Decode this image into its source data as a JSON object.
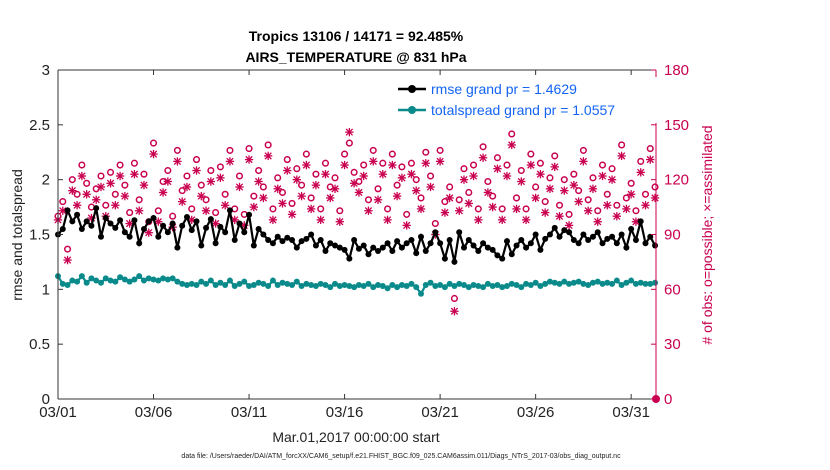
{
  "chart_data": {
    "type": "line",
    "title_line1": "Tropics 13106 / 14171 = 92.485%",
    "title_line2": "AIRS_TEMPERATURE @ 831 hPa",
    "xlabel": "Mar.01,2017 00:00:00 start",
    "ylabel_left": "rmse and totalspread",
    "ylabel_right": "# of obs: o=possible; ×=assimilated",
    "xlim": [
      0,
      31.3
    ],
    "ylim_left": [
      0,
      3
    ],
    "ylim_right": [
      0,
      180
    ],
    "x_ticks": [
      0,
      5,
      10,
      15,
      20,
      25,
      30
    ],
    "x_tick_labels": [
      "03/01",
      "03/06",
      "03/11",
      "03/16",
      "03/21",
      "03/26",
      "03/31"
    ],
    "y_ticks_left": [
      0,
      0.5,
      1,
      1.5,
      2,
      2.5,
      3
    ],
    "y_tick_labels_left": [
      "0",
      "0.5",
      "1",
      "1.5",
      "2",
      "2.5",
      "3"
    ],
    "y_ticks_right": [
      0,
      30,
      60,
      90,
      120,
      150,
      180
    ],
    "y_tick_labels_right": [
      "0",
      "30",
      "60",
      "90",
      "120",
      "150",
      "180"
    ],
    "grid": false,
    "legend_location": "top-right",
    "x": [
      0.0,
      0.25,
      0.5,
      0.75,
      1.0,
      1.25,
      1.5,
      1.75,
      2.0,
      2.25,
      2.5,
      2.75,
      3.0,
      3.25,
      3.5,
      3.75,
      4.0,
      4.25,
      4.5,
      4.75,
      5.0,
      5.25,
      5.5,
      5.75,
      6.0,
      6.25,
      6.5,
      6.75,
      7.0,
      7.25,
      7.5,
      7.75,
      8.0,
      8.25,
      8.5,
      8.75,
      9.0,
      9.25,
      9.5,
      9.75,
      10.0,
      10.25,
      10.5,
      10.75,
      11.0,
      11.25,
      11.5,
      11.75,
      12.0,
      12.25,
      12.5,
      12.75,
      13.0,
      13.25,
      13.5,
      13.75,
      14.0,
      14.25,
      14.5,
      14.75,
      15.0,
      15.25,
      15.5,
      15.75,
      16.0,
      16.25,
      16.5,
      16.75,
      17.0,
      17.25,
      17.5,
      17.75,
      18.0,
      18.25,
      18.5,
      18.75,
      19.0,
      19.25,
      19.5,
      19.75,
      20.0,
      20.25,
      20.5,
      20.75,
      21.0,
      21.25,
      21.5,
      21.75,
      22.0,
      22.25,
      22.5,
      22.75,
      23.0,
      23.25,
      23.5,
      23.75,
      24.0,
      24.25,
      24.5,
      24.75,
      25.0,
      25.25,
      25.5,
      25.75,
      26.0,
      26.25,
      26.5,
      26.75,
      27.0,
      27.25,
      27.5,
      27.75,
      28.0,
      28.25,
      28.5,
      28.75,
      29.0,
      29.25,
      29.5,
      29.75,
      30.0,
      30.25,
      30.5,
      30.75,
      31.0,
      31.25
    ],
    "series": [
      {
        "name": "rmse grand pr = 1.4629",
        "color": "#000000",
        "axis": "left",
        "values": [
          1.5,
          1.55,
          1.72,
          1.62,
          1.68,
          1.55,
          1.62,
          1.58,
          1.74,
          1.48,
          1.65,
          1.6,
          1.56,
          1.63,
          1.52,
          1.48,
          1.63,
          1.42,
          1.55,
          1.62,
          1.65,
          1.48,
          1.58,
          1.52,
          1.6,
          1.38,
          1.58,
          1.66,
          1.54,
          1.62,
          1.4,
          1.56,
          1.64,
          1.42,
          1.57,
          1.52,
          1.72,
          1.45,
          1.6,
          1.52,
          1.68,
          1.4,
          1.55,
          1.5,
          1.45,
          1.42,
          1.48,
          1.44,
          1.47,
          1.45,
          1.38,
          1.44,
          1.46,
          1.5,
          1.4,
          1.45,
          1.35,
          1.42,
          1.4,
          1.38,
          1.36,
          1.28,
          1.45,
          1.37,
          1.4,
          1.32,
          1.38,
          1.35,
          1.38,
          1.42,
          1.35,
          1.44,
          1.38,
          1.42,
          1.45,
          1.33,
          1.48,
          1.35,
          1.42,
          1.52,
          1.42,
          1.28,
          1.45,
          1.25,
          1.52,
          1.38,
          1.45,
          1.4,
          1.35,
          1.42,
          1.38,
          1.36,
          1.31,
          1.28,
          1.44,
          1.32,
          1.4,
          1.45,
          1.38,
          1.42,
          1.5,
          1.36,
          1.46,
          1.5,
          1.56,
          1.48,
          1.54,
          1.52,
          1.45,
          1.42,
          1.5,
          1.45,
          1.48,
          1.52,
          1.42,
          1.46,
          1.48,
          1.42,
          1.5,
          1.38,
          1.55,
          1.45,
          1.62,
          1.42,
          1.48,
          1.4
        ]
      },
      {
        "name": "totalspread grand pr = 1.0557",
        "color": "#0a8a8a",
        "axis": "left",
        "values": [
          1.12,
          1.05,
          1.04,
          1.08,
          1.07,
          1.12,
          1.06,
          1.1,
          1.08,
          1.06,
          1.1,
          1.08,
          1.07,
          1.11,
          1.09,
          1.07,
          1.09,
          1.12,
          1.08,
          1.1,
          1.09,
          1.08,
          1.1,
          1.09,
          1.1,
          1.07,
          1.05,
          1.04,
          1.05,
          1.04,
          1.07,
          1.05,
          1.08,
          1.04,
          1.06,
          1.04,
          1.08,
          1.03,
          1.05,
          1.07,
          1.03,
          1.04,
          1.06,
          1.05,
          1.03,
          1.08,
          1.04,
          1.06,
          1.05,
          1.04,
          1.07,
          1.03,
          1.05,
          1.04,
          1.03,
          1.05,
          1.04,
          1.02,
          1.05,
          1.03,
          1.04,
          1.03,
          1.02,
          1.04,
          1.03,
          1.05,
          1.02,
          1.04,
          1.03,
          1.01,
          1.04,
          1.02,
          1.04,
          1.03,
          1.05,
          1.02,
          0.96,
          1.04,
          1.06,
          1.03,
          1.04,
          1.02,
          1.05,
          1.03,
          1.05,
          1.04,
          1.02,
          1.04,
          1.03,
          1.02,
          1.05,
          1.03,
          1.04,
          1.02,
          1.03,
          1.05,
          1.04,
          1.02,
          1.05,
          1.04,
          1.06,
          1.03,
          1.05,
          1.07,
          1.06,
          1.05,
          1.07,
          1.05,
          1.06,
          1.07,
          1.05,
          1.04,
          1.06,
          1.07,
          1.05,
          1.06,
          1.05,
          1.08,
          1.04,
          1.06,
          1.08,
          1.05,
          1.06,
          1.05,
          1.05,
          1.06
        ]
      },
      {
        "name": "obs possible",
        "color": "#c8004f",
        "axis": "right",
        "marker": "circle",
        "values": [
          100,
          108,
          82,
          120,
          112,
          128,
          118,
          105,
          115,
          122,
          106,
          124,
          112,
          128,
          117,
          102,
          129,
          109,
          123,
          97,
          140,
          103,
          119,
          125,
          100,
          136,
          114,
          122,
          104,
          131,
          117,
          109,
          125,
          102,
          127,
          112,
          136,
          104,
          122,
          101,
          137,
          111,
          125,
          116,
          139,
          104,
          121,
          113,
          131,
          107,
          126,
          117,
          134,
          110,
          123,
          104,
          129,
          116,
          121,
          103,
          134,
          140,
          124,
          119,
          128,
          109,
          136,
          115,
          129,
          104,
          134,
          117,
          127,
          101,
          129,
          120,
          110,
          135,
          122,
          96,
          136,
          108,
          116,
          55,
          109,
          126,
          113,
          128,
          104,
          138,
          119,
          111,
          132,
          104,
          128,
          145,
          110,
          125,
          104,
          134,
          116,
          129,
          108,
          121,
          133,
          106,
          120,
          101,
          123,
          114,
          136,
          109,
          121,
          103,
          128,
          112,
          126,
          106,
          139,
          110,
          118,
          103,
          130,
          112,
          137,
          116
        ]
      },
      {
        "name": "obs assimilated",
        "color": "#c8004f",
        "axis": "right",
        "marker": "x",
        "values": [
          98,
          103,
          76,
          114,
          106,
          122,
          112,
          99,
          109,
          116,
          100,
          118,
          106,
          122,
          111,
          96,
          123,
          103,
          117,
          91,
          134,
          97,
          113,
          119,
          94,
          130,
          108,
          116,
          98,
          125,
          111,
          103,
          119,
          96,
          121,
          106,
          130,
          98,
          116,
          95,
          131,
          105,
          119,
          110,
          133,
          98,
          115,
          107,
          125,
          101,
          120,
          111,
          128,
          104,
          117,
          98,
          123,
          110,
          115,
          97,
          128,
          146,
          118,
          113,
          122,
          103,
          130,
          109,
          123,
          98,
          128,
          111,
          121,
          95,
          123,
          114,
          104,
          129,
          116,
          90,
          130,
          102,
          110,
          48,
          103,
          120,
          107,
          122,
          98,
          132,
          113,
          105,
          126,
          98,
          122,
          139,
          104,
          119,
          98,
          128,
          110,
          123,
          102,
          115,
          127,
          100,
          114,
          95,
          117,
          108,
          130,
          103,
          115,
          97,
          122,
          106,
          120,
          100,
          133,
          104,
          112,
          97,
          124,
          106,
          131,
          110
        ]
      }
    ],
    "footer": "data file: /Users/raeder/DAI/ATM_forcXX/CAM6_setup/f.e21.FHIST_BGC.f09_025.CAM6assim.011/Diags_NTrS_2017-03/obs_diag_output.nc"
  }
}
